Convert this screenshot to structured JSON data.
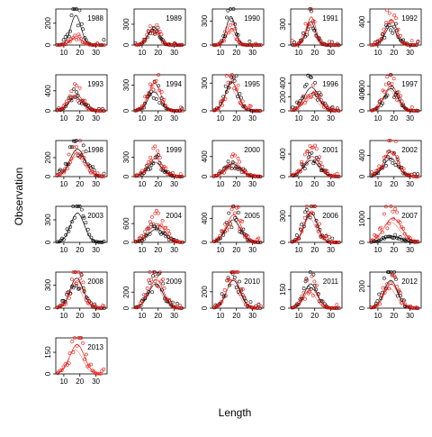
{
  "xlabel": "Length",
  "ylabel": "Observation",
  "colors": {
    "black": "#000000",
    "red": "#e8120c",
    "pink": "#f08080"
  },
  "chart_data": [
    {
      "type": "scatter",
      "title": "1988",
      "xticks": [
        10,
        20,
        30
      ],
      "yticks": [
        0,
        200
      ],
      "ymax": 330,
      "peak": 17.5,
      "width": 3.2,
      "ser_a": 320,
      "ser_b": 90
    },
    {
      "type": "scatter",
      "title": "1989",
      "xticks": [
        10,
        20,
        30
      ],
      "yticks": [
        0,
        300
      ],
      "ymax": 520,
      "peak": 17,
      "width": 3.4,
      "ser_a": 260,
      "ser_b": 300
    },
    {
      "type": "scatter",
      "title": "1990",
      "xticks": [
        10,
        20,
        30
      ],
      "yticks": [
        0,
        300
      ],
      "ymax": 450,
      "peak": 16.5,
      "width": 2.8,
      "ser_a": 420,
      "ser_b": 240
    },
    {
      "type": "scatter",
      "title": "1991",
      "xticks": [
        10,
        20,
        30
      ],
      "yticks": [
        0,
        300
      ],
      "ymax": 520,
      "peak": 17.5,
      "width": 2.8,
      "ser_a": 400,
      "ser_b": 480
    },
    {
      "type": "scatter",
      "title": "1992",
      "xticks": [
        10,
        20,
        30
      ],
      "yticks": [
        0,
        400
      ],
      "ymax": 620,
      "peak": 18,
      "width": 3.5,
      "ser_a": 380,
      "ser_b": 520
    },
    {
      "type": "scatter",
      "title": "1993",
      "xticks": [
        10,
        20,
        30
      ],
      "yticks": [
        0,
        400
      ],
      "ymax": 720,
      "peak": 17.5,
      "width": 4.2,
      "ser_a": 320,
      "ser_b": 380
    },
    {
      "type": "scatter",
      "title": "1994",
      "xticks": [
        10,
        20,
        30
      ],
      "yticks": [
        0,
        300
      ],
      "ymax": 420,
      "peak": 17.5,
      "width": 3.8,
      "ser_a": 260,
      "ser_b": 380
    },
    {
      "type": "scatter",
      "title": "1995",
      "xticks": [
        10,
        20,
        30
      ],
      "yticks": [
        0,
        300
      ],
      "ymax": 390,
      "peak": 17,
      "width": 3.8,
      "ser_a": 370,
      "ser_b": 360
    },
    {
      "type": "scatter",
      "title": "1996",
      "xticks": [
        10,
        20,
        30
      ],
      "yticks": [
        0,
        200,
        400
      ],
      "ymax": 520,
      "peak": 18,
      "width": 4.5,
      "ser_a": 400,
      "ser_b": 300
    },
    {
      "type": "scatter",
      "title": "1997",
      "xticks": [
        10,
        20,
        30
      ],
      "yticks": [
        0,
        400,
        600
      ],
      "ymax": 880,
      "peak": 18,
      "width": 4.2,
      "ser_a": 640,
      "ser_b": 720
    },
    {
      "type": "scatter",
      "title": "1998",
      "xticks": [
        10,
        20,
        30
      ],
      "yticks": [
        0,
        200
      ],
      "ymax": 380,
      "peak": 18.5,
      "width": 4.8,
      "ser_a": 340,
      "ser_b": 300
    },
    {
      "type": "scatter",
      "title": "1999",
      "xticks": [
        10,
        20,
        30
      ],
      "yticks": [
        0,
        300
      ],
      "ymax": 560,
      "peak": 18,
      "width": 4.5,
      "ser_a": 260,
      "ser_b": 330
    },
    {
      "type": "scatter",
      "title": "2000",
      "xticks": [
        10,
        20,
        30
      ],
      "yticks": [
        0,
        400
      ],
      "ymax": 720,
      "peak": 18,
      "width": 4.5,
      "ser_a": 300,
      "ser_b": 340
    },
    {
      "type": "scatter",
      "title": "2001",
      "xticks": [
        10,
        20,
        30
      ],
      "yticks": [
        0,
        400
      ],
      "ymax": 640,
      "peak": 18,
      "width": 4.8,
      "ser_a": 340,
      "ser_b": 420
    },
    {
      "type": "scatter",
      "title": "2002",
      "xticks": [
        10,
        20,
        30
      ],
      "yticks": [
        0,
        400
      ],
      "ymax": 680,
      "peak": 18,
      "width": 4.5,
      "ser_a": 400,
      "ser_b": 560
    },
    {
      "type": "scatter",
      "title": "2003",
      "xticks": [
        10,
        20,
        30
      ],
      "yticks": [
        0,
        300
      ],
      "ymax": 480,
      "peak": 18.5,
      "width": 4.2,
      "ser_a": 460,
      "ser_b": 0
    },
    {
      "type": "scatter",
      "title": "2004",
      "xticks": [
        10,
        20,
        30
      ],
      "yticks": [
        0,
        600
      ],
      "ymax": 1150,
      "peak": 19,
      "width": 5.0,
      "ser_a": 500,
      "ser_b": 700
    },
    {
      "type": "scatter",
      "title": "2005",
      "xticks": [
        10,
        20,
        30
      ],
      "yticks": [
        0,
        400
      ],
      "ymax": 600,
      "peak": 18,
      "width": 4.5,
      "ser_a": 440,
      "ser_b": 540
    },
    {
      "type": "scatter",
      "title": "2006",
      "xticks": [
        10,
        20,
        30
      ],
      "yticks": [
        0,
        300
      ],
      "ymax": 410,
      "peak": 17.5,
      "width": 4.0,
      "ser_a": 400,
      "ser_b": 390
    },
    {
      "type": "scatter",
      "title": "2007",
      "xticks": [
        10,
        20,
        30
      ],
      "yticks": [
        0,
        1000
      ],
      "ymax": 1520,
      "peak": 19,
      "width": 5.5,
      "ser_a": 280,
      "ser_b": 1200
    },
    {
      "type": "scatter",
      "title": "2008",
      "xticks": [
        10,
        20,
        30
      ],
      "yticks": [
        0,
        300
      ],
      "ymax": 470,
      "peak": 18,
      "width": 4.2,
      "ser_a": 460,
      "ser_b": 420
    },
    {
      "type": "scatter",
      "title": "2009",
      "xticks": [
        10,
        20,
        30
      ],
      "yticks": [
        0,
        200
      ],
      "ymax": 450,
      "peak": 18.5,
      "width": 4.5,
      "ser_a": 360,
      "ser_b": 420
    },
    {
      "type": "scatter",
      "title": "2010",
      "xticks": [
        10,
        20,
        30
      ],
      "yticks": [
        0,
        200
      ],
      "ymax": 440,
      "peak": 18,
      "width": 4.2,
      "ser_a": 400,
      "ser_b": 420
    },
    {
      "type": "scatter",
      "title": "2011",
      "xticks": [
        10,
        20,
        30
      ],
      "yticks": [
        0,
        150
      ],
      "ymax": 290,
      "peak": 17.5,
      "width": 4.0,
      "ser_a": 230,
      "ser_b": 190
    },
    {
      "type": "scatter",
      "title": "2012",
      "xticks": [
        10,
        20,
        30
      ],
      "yticks": [
        0,
        200
      ],
      "ymax": 330,
      "peak": 18,
      "width": 4.2,
      "ser_a": 300,
      "ser_b": 260
    },
    {
      "type": "scatter",
      "title": "2013",
      "xticks": [
        10,
        20,
        30
      ],
      "yticks": [
        0,
        150
      ],
      "ymax": 250,
      "peak": 18,
      "width": 4.5,
      "ser_a": 0,
      "ser_b": 240
    }
  ]
}
